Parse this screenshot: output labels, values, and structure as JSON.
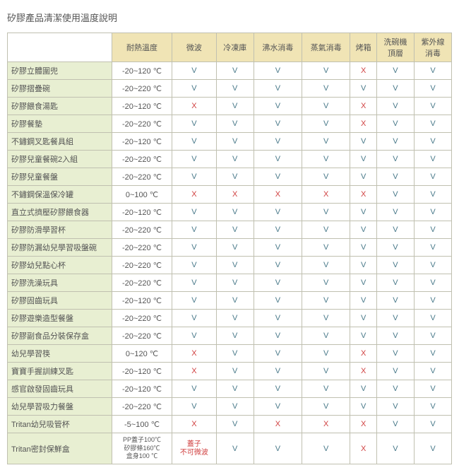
{
  "title": "矽膠產品清潔使用溫度說明",
  "columns": [
    "耐熱溫度",
    "微波",
    "冷凍庫",
    "沸水消毒",
    "蒸氣消毒",
    "烤箱",
    "洗碗機\n頂層",
    "紫外線\n消毒"
  ],
  "rows": [
    {
      "name": "矽膠立體圍兜",
      "temp": "-20~120 ℃",
      "vals": [
        "V",
        "V",
        "V",
        "V",
        "X",
        "V",
        "V"
      ]
    },
    {
      "name": "矽膠摺疊碗",
      "temp": "-20~220 ℃",
      "vals": [
        "V",
        "V",
        "V",
        "V",
        "V",
        "V",
        "V"
      ]
    },
    {
      "name": "矽膠餵食湯匙",
      "temp": "-20~120 ℃",
      "vals": [
        "X",
        "V",
        "V",
        "V",
        "X",
        "V",
        "V"
      ]
    },
    {
      "name": "矽膠餐墊",
      "temp": "-20~220 ℃",
      "vals": [
        "V",
        "V",
        "V",
        "V",
        "X",
        "V",
        "V"
      ]
    },
    {
      "name": "不鏽鋼叉匙餐具組",
      "temp": "-20~120 ℃",
      "vals": [
        "V",
        "V",
        "V",
        "V",
        "V",
        "V",
        "V"
      ]
    },
    {
      "name": "矽膠兒童餐碗2入組",
      "temp": "-20~220 ℃",
      "vals": [
        "V",
        "V",
        "V",
        "V",
        "V",
        "V",
        "V"
      ]
    },
    {
      "name": "矽膠兒童餐盤",
      "temp": "-20~220 ℃",
      "vals": [
        "V",
        "V",
        "V",
        "V",
        "V",
        "V",
        "V"
      ]
    },
    {
      "name": "不鏽鋼保溫保冷罐",
      "temp": "0~100 ℃",
      "vals": [
        "X",
        "X",
        "X",
        "X",
        "X",
        "V",
        "V"
      ]
    },
    {
      "name": "直立式擠壓矽膠餵食器",
      "temp": "-20~120 ℃",
      "vals": [
        "V",
        "V",
        "V",
        "V",
        "V",
        "V",
        "V"
      ]
    },
    {
      "name": "矽膠防滑學習杯",
      "temp": "-20~220 ℃",
      "vals": [
        "V",
        "V",
        "V",
        "V",
        "V",
        "V",
        "V"
      ]
    },
    {
      "name": "矽膠防漏幼兒學習吸盤碗",
      "temp": "-20~220 ℃",
      "vals": [
        "V",
        "V",
        "V",
        "V",
        "V",
        "V",
        "V"
      ]
    },
    {
      "name": "矽膠幼兒點心杯",
      "temp": "-20~220 ℃",
      "vals": [
        "V",
        "V",
        "V",
        "V",
        "V",
        "V",
        "V"
      ]
    },
    {
      "name": "矽膠洗澡玩具",
      "temp": "-20~220 ℃",
      "vals": [
        "V",
        "V",
        "V",
        "V",
        "V",
        "V",
        "V"
      ]
    },
    {
      "name": "矽膠固齒玩具",
      "temp": "-20~120 ℃",
      "vals": [
        "V",
        "V",
        "V",
        "V",
        "V",
        "V",
        "V"
      ]
    },
    {
      "name": "矽膠遊樂造型餐盤",
      "temp": "-20~220 ℃",
      "vals": [
        "V",
        "V",
        "V",
        "V",
        "V",
        "V",
        "V"
      ]
    },
    {
      "name": "矽膠副食品分裝保存盒",
      "temp": "-20~220 ℃",
      "vals": [
        "V",
        "V",
        "V",
        "V",
        "V",
        "V",
        "V"
      ]
    },
    {
      "name": "幼兒學習筷",
      "temp": "0~120 ℃",
      "vals": [
        "X",
        "V",
        "V",
        "V",
        "X",
        "V",
        "V"
      ]
    },
    {
      "name": "寶寶手握訓練叉匙",
      "temp": "-20~120 ℃",
      "vals": [
        "X",
        "V",
        "V",
        "V",
        "X",
        "V",
        "V"
      ]
    },
    {
      "name": "感官啟發固齒玩具",
      "temp": "-20~120 ℃",
      "vals": [
        "V",
        "V",
        "V",
        "V",
        "V",
        "V",
        "V"
      ]
    },
    {
      "name": "幼兒學習吸力餐盤",
      "temp": "-20~220 ℃",
      "vals": [
        "V",
        "V",
        "V",
        "V",
        "V",
        "V",
        "V"
      ]
    },
    {
      "name": "Tritan幼兒吸管杯",
      "temp": "-5~100 ℃",
      "vals": [
        "X",
        "V",
        "X",
        "X",
        "X",
        "V",
        "V"
      ]
    },
    {
      "name": "Tritan密封保鮮盒",
      "temp": "PP蓋子100℃\n矽膠條160℃\n盒身100 ℃",
      "vals": [
        "蓋子\n不可微波",
        "V",
        "V",
        "V",
        "X",
        "V",
        "V"
      ],
      "special": true
    }
  ]
}
